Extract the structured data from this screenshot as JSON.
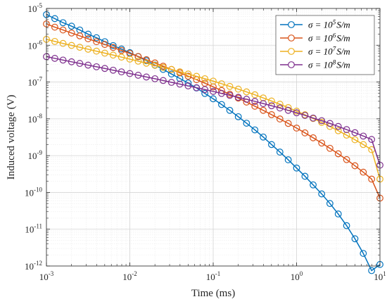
{
  "chart_data": {
    "type": "line",
    "xlabel": "Time (ms)",
    "ylabel": "Induced voltage (V)",
    "x_scale": "log",
    "y_scale": "log",
    "xlim": [
      0.001,
      10
    ],
    "ylim": [
      1e-12,
      1e-05
    ],
    "x_ticks": [
      0.001,
      0.01,
      0.1,
      1,
      10
    ],
    "x_tick_labels": [
      [
        "10",
        "-3"
      ],
      [
        "10",
        "-2"
      ],
      [
        "10",
        "-1"
      ],
      [
        "10",
        "0"
      ],
      [
        "10",
        "1"
      ]
    ],
    "y_ticks": [
      1e-12,
      1e-11,
      1e-10,
      1e-09,
      1e-08,
      1e-07,
      1e-06,
      1e-05
    ],
    "y_tick_labels": [
      [
        "10",
        "-12"
      ],
      [
        "10",
        "-11"
      ],
      [
        "10",
        "-10"
      ],
      [
        "10",
        "-9"
      ],
      [
        "10",
        "-8"
      ],
      [
        "10",
        "-7"
      ],
      [
        "10",
        "-6"
      ],
      [
        "10",
        "-5"
      ]
    ],
    "grid": true,
    "minor_grid": true,
    "legend_position": "top-right",
    "marker": "circle",
    "series": [
      {
        "name": "σ = 10^5 S/m",
        "label_parts": [
          "σ = 10",
          "5",
          "S/m"
        ],
        "color": "#0072BD",
        "x": [
          0.001,
          0.00126,
          0.00158,
          0.002,
          0.00251,
          0.00316,
          0.00398,
          0.00501,
          0.00631,
          0.00794,
          0.01,
          0.0126,
          0.0158,
          0.02,
          0.0251,
          0.0316,
          0.0398,
          0.0501,
          0.0631,
          0.0794,
          0.1,
          0.126,
          0.158,
          0.2,
          0.251,
          0.316,
          0.398,
          0.501,
          0.631,
          0.794,
          1,
          1.26,
          1.58,
          2,
          2.51,
          3.16,
          3.98,
          5.01,
          6.31,
          7.94,
          10
        ],
        "y": [
          6.8e-06,
          5.3e-06,
          4.1e-06,
          3.3e-06,
          2.6e-06,
          2e-06,
          1.6e-06,
          1.25e-06,
          9.8e-07,
          7.9e-07,
          6.3e-07,
          4.9e-07,
          3.8e-07,
          2.9e-07,
          2.2e-07,
          1.65e-07,
          1.25e-07,
          9.4e-08,
          6.9e-08,
          4.9e-08,
          3.5e-08,
          2.45e-08,
          1.7e-08,
          1.14e-08,
          7.6e-09,
          5e-09,
          3.2e-09,
          2e-09,
          1.25e-09,
          7.7e-10,
          4.6e-10,
          2.75e-10,
          1.6e-10,
          9.1e-11,
          5e-11,
          2.6e-11,
          1.25e-11,
          5.5e-12,
          2.2e-12,
          7.5e-13,
          1.1e-12
        ]
      },
      {
        "name": "σ = 10^6 S/m",
        "label_parts": [
          "σ = 10",
          "6",
          "S/m"
        ],
        "color": "#D95319",
        "x": [
          0.001,
          0.00126,
          0.00158,
          0.002,
          0.00251,
          0.00316,
          0.00398,
          0.00501,
          0.00631,
          0.00794,
          0.01,
          0.0126,
          0.0158,
          0.02,
          0.0251,
          0.0316,
          0.0398,
          0.0501,
          0.0631,
          0.0794,
          0.1,
          0.126,
          0.158,
          0.2,
          0.251,
          0.316,
          0.398,
          0.501,
          0.631,
          0.794,
          1,
          1.26,
          1.58,
          2,
          2.51,
          3.16,
          3.98,
          5.01,
          6.31,
          7.94,
          10
        ],
        "y": [
          3.8e-06,
          3.1e-06,
          2.6e-06,
          2.15e-06,
          1.8e-06,
          1.5e-06,
          1.25e-06,
          1.05e-06,
          8.7e-07,
          7.2e-07,
          6e-07,
          4.95e-07,
          4.05e-07,
          3.3e-07,
          2.7e-07,
          2.2e-07,
          1.78e-07,
          1.44e-07,
          1.16e-07,
          9.3e-08,
          7.4e-08,
          5.9e-08,
          4.65e-08,
          3.65e-08,
          2.85e-08,
          2.2e-08,
          1.7e-08,
          1.3e-08,
          9.9e-09,
          7.5e-09,
          5.6e-09,
          4.15e-09,
          3.05e-09,
          2.2e-09,
          1.58e-09,
          1.12e-09,
          7.8e-10,
          5.3e-10,
          3.55e-10,
          2.3e-10,
          7e-11
        ]
      },
      {
        "name": "σ = 10^7 S/m",
        "label_parts": [
          "σ = 10",
          "7",
          "S/m"
        ],
        "color": "#EDB120",
        "x": [
          0.001,
          0.00126,
          0.00158,
          0.002,
          0.00251,
          0.00316,
          0.00398,
          0.00501,
          0.00631,
          0.00794,
          0.01,
          0.0126,
          0.0158,
          0.02,
          0.0251,
          0.0316,
          0.0398,
          0.0501,
          0.0631,
          0.0794,
          0.1,
          0.126,
          0.158,
          0.2,
          0.251,
          0.316,
          0.398,
          0.501,
          0.631,
          0.794,
          1,
          1.26,
          1.58,
          2,
          2.51,
          3.16,
          3.98,
          5.01,
          6.31,
          7.94,
          10
        ],
        "y": [
          1.45e-06,
          1.27e-06,
          1.12e-06,
          9.9e-07,
          8.8e-07,
          7.8e-07,
          6.9e-07,
          6.1e-07,
          5.4e-07,
          4.75e-07,
          4.2e-07,
          3.7e-07,
          3.25e-07,
          2.85e-07,
          2.5e-07,
          2.2e-07,
          1.9e-07,
          1.65e-07,
          1.43e-07,
          1.23e-07,
          1.06e-07,
          9e-08,
          7.6e-08,
          6.4e-08,
          5.4e-08,
          4.5e-08,
          3.7e-08,
          3.05e-08,
          2.5e-08,
          2.02e-08,
          1.62e-08,
          1.29e-08,
          1.02e-08,
          8e-09,
          6.2e-09,
          4.75e-09,
          3.6e-09,
          2.7e-09,
          2e-09,
          1.45e-09,
          2.3e-10
        ]
      },
      {
        "name": "σ = 10^8 S/m",
        "label_parts": [
          "σ = 10",
          "8",
          "S/m"
        ],
        "color": "#7E2F8E",
        "x": [
          0.001,
          0.00126,
          0.00158,
          0.002,
          0.00251,
          0.00316,
          0.00398,
          0.00501,
          0.00631,
          0.00794,
          0.01,
          0.0126,
          0.0158,
          0.02,
          0.0251,
          0.0316,
          0.0398,
          0.0501,
          0.0631,
          0.0794,
          0.1,
          0.126,
          0.158,
          0.2,
          0.251,
          0.316,
          0.398,
          0.501,
          0.631,
          0.794,
          1,
          1.26,
          1.58,
          2,
          2.51,
          3.16,
          3.98,
          5.01,
          6.31,
          7.94,
          10
        ],
        "y": [
          4.9e-07,
          4.4e-07,
          3.95e-07,
          3.55e-07,
          3.2e-07,
          2.88e-07,
          2.6e-07,
          2.34e-07,
          2.1e-07,
          1.89e-07,
          1.7e-07,
          1.53e-07,
          1.37e-07,
          1.23e-07,
          1.1e-07,
          9.8e-08,
          8.8e-08,
          7.85e-08,
          7e-08,
          6.25e-08,
          5.55e-08,
          4.9e-08,
          4.35e-08,
          3.85e-08,
          3.4e-08,
          2.98e-08,
          2.6e-08,
          2.27e-08,
          1.97e-08,
          1.7e-08,
          1.46e-08,
          1.24e-08,
          1.05e-08,
          8.9e-09,
          7.5e-09,
          6.2e-09,
          5.1e-09,
          4.2e-09,
          3.4e-09,
          2.75e-09,
          5.5e-10
        ]
      }
    ]
  }
}
